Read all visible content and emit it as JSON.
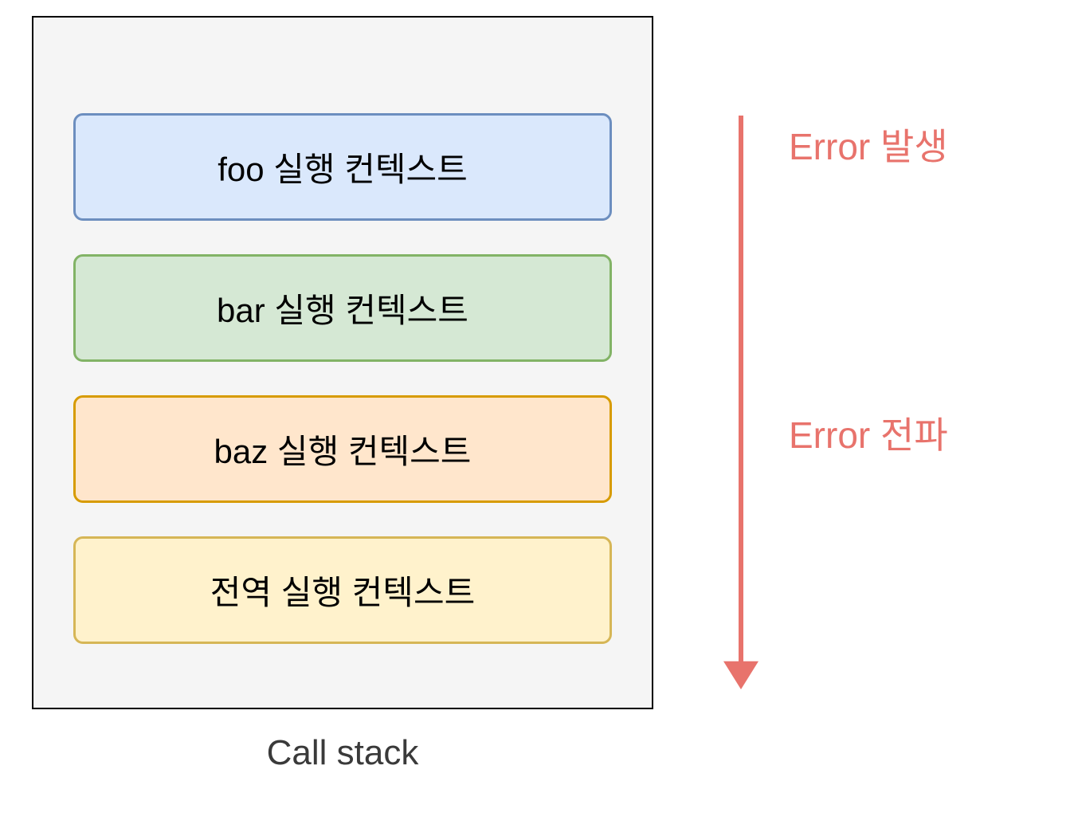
{
  "stack": {
    "caption": "Call stack",
    "container_bg": "#f5f5f5",
    "container_border": "#000000",
    "frames": [
      {
        "label": "foo 실행 컨텍스트",
        "fill": "#dae8fc",
        "border": "#6c8ebf"
      },
      {
        "label": "bar 실행 컨텍스트",
        "fill": "#d5e8d4",
        "border": "#82b366"
      },
      {
        "label": "baz 실행 컨텍스트",
        "fill": "#ffe6cc",
        "border": "#d79b00"
      },
      {
        "label": "전역 실행 컨텍스트",
        "fill": "#fff2cc",
        "border": "#d6b656"
      }
    ]
  },
  "arrow": {
    "color": "#e8736c",
    "stroke_width": 6,
    "head_size": 22
  },
  "labels": {
    "top": "Error 발생",
    "mid": "Error 전파",
    "color": "#e8736c"
  }
}
